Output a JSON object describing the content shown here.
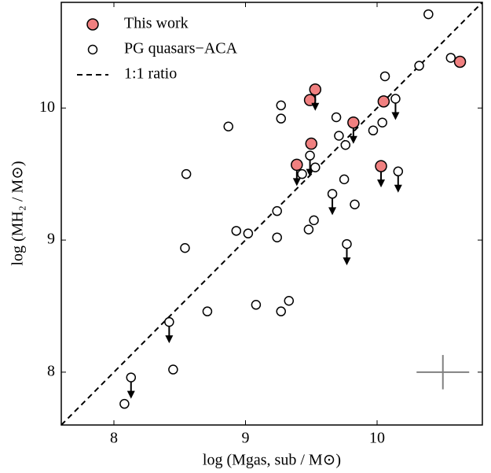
{
  "chart_data": {
    "type": "scatter",
    "xlabel": "log (Mgas, sub / M⊙)",
    "ylabel": "log (MH₂ / M⊙)",
    "xlim": [
      7.6,
      10.8
    ],
    "ylim": [
      7.6,
      10.8
    ],
    "xticks": [
      8,
      9,
      10
    ],
    "yticks": [
      8,
      9,
      10
    ],
    "legend": "upper left",
    "series": [
      {
        "name": "This work",
        "color": "#f08080",
        "edgecolor": "#000000",
        "x": [
          9.39,
          9.49,
          9.53,
          9.5,
          9.82,
          10.05,
          10.03,
          10.63
        ],
        "y": [
          9.57,
          10.06,
          10.14,
          9.73,
          9.89,
          10.05,
          9.56,
          10.35
        ],
        "upper_limits": [
          true,
          false,
          true,
          false,
          true,
          false,
          true,
          false
        ]
      },
      {
        "name": "PG quasars−ACA",
        "color": "#ffffff",
        "edgecolor": "#000000",
        "x": [
          10.39,
          10.56,
          10.32,
          10.06,
          9.27,
          9.27,
          8.87,
          9.69,
          9.97,
          10.04,
          10.14,
          9.71,
          9.76,
          9.49,
          9.43,
          9.53,
          8.55,
          9.75,
          10.16,
          9.66,
          9.24,
          9.52,
          9.83,
          9.48,
          8.93,
          9.02,
          9.24,
          9.77,
          8.54,
          9.08,
          9.33,
          9.27,
          8.71,
          8.42,
          8.45,
          8.13,
          8.08
        ],
        "y": [
          10.71,
          10.38,
          10.32,
          10.24,
          10.02,
          9.92,
          9.86,
          9.93,
          9.83,
          9.89,
          10.07,
          9.79,
          9.72,
          9.64,
          9.5,
          9.55,
          9.5,
          9.46,
          9.52,
          9.35,
          9.22,
          9.15,
          9.27,
          9.08,
          9.07,
          9.05,
          9.02,
          8.97,
          8.94,
          8.51,
          8.54,
          8.46,
          8.46,
          8.38,
          8.02,
          7.96,
          7.76
        ],
        "upper_limits": [
          false,
          false,
          false,
          false,
          false,
          false,
          false,
          false,
          false,
          false,
          true,
          false,
          false,
          true,
          false,
          false,
          false,
          false,
          true,
          true,
          false,
          false,
          false,
          false,
          false,
          false,
          false,
          true,
          false,
          false,
          false,
          false,
          false,
          true,
          false,
          true,
          false
        ]
      }
    ],
    "line": {
      "name": "1:1 ratio",
      "color": "#000000",
      "dashed": true
    },
    "error_cross": {
      "x": 10.5,
      "y": 8.0,
      "xerr": 0.2,
      "yerr": 0.13,
      "color": "#808080"
    }
  }
}
